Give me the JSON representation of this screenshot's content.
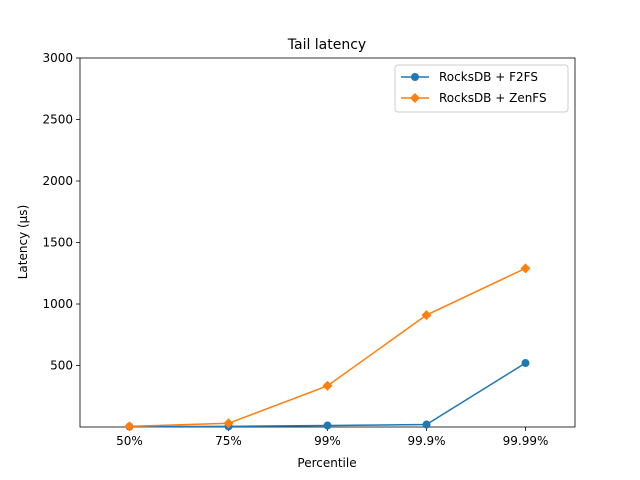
{
  "chart_data": {
    "type": "line",
    "title": "Tail latency",
    "xlabel": "Percentile",
    "ylabel": "Latency (µs)",
    "categories": [
      "50%",
      "75%",
      "99%",
      "99.9%",
      "99.99%"
    ],
    "ylim": [
      0,
      3000
    ],
    "yticks": [
      500,
      1000,
      1500,
      2000,
      2500,
      3000
    ],
    "grid": false,
    "legend_position": "top-right",
    "series": [
      {
        "name": "RocksDB + F2FS",
        "color": "#1f77b4",
        "marker": "circle",
        "values": [
          3,
          5,
          12,
          20,
          520
        ]
      },
      {
        "name": "RocksDB + ZenFS",
        "color": "#ff7f0e",
        "marker": "diamond",
        "values": [
          5,
          30,
          335,
          910,
          1290
        ]
      }
    ]
  }
}
